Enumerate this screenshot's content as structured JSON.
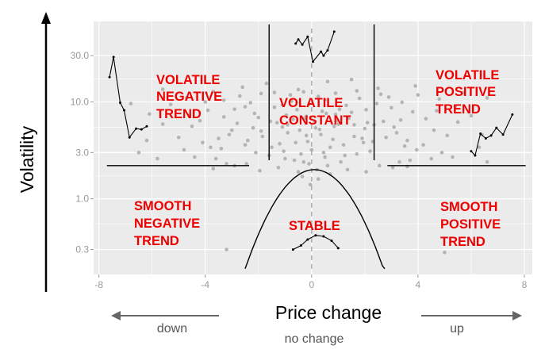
{
  "chart_data": {
    "type": "scatter",
    "title": "",
    "xlabel": "Price change",
    "ylabel": "Volatility",
    "xlim": [
      -8.2,
      8.3
    ],
    "ylim_log10": [
      -0.78,
      1.83
    ],
    "y_scale": "log",
    "grid": true,
    "x_ticks": [
      "-8",
      "-4",
      "0",
      "4",
      "8"
    ],
    "y_ticks": [
      "0.3",
      "1.0",
      "3.0",
      "10.0",
      "30.0"
    ],
    "x_tick_values": [
      -8,
      -4,
      0,
      4,
      8
    ],
    "y_tick_values": [
      0.3,
      1.0,
      3.0,
      10.0,
      30.0
    ],
    "regions": [
      {
        "lines": [
          "VOLATILE",
          "NEGATIVE",
          "TREND"
        ]
      },
      {
        "lines": [
          "VOLATILE",
          "CONSTANT"
        ]
      },
      {
        "lines": [
          "VOLATILE",
          "POSITIVE",
          "TREND"
        ]
      },
      {
        "lines": [
          "SMOOTH",
          "NEGATIVE",
          "TREND"
        ]
      },
      {
        "lines": [
          "STABLE"
        ]
      },
      {
        "lines": [
          "SMOOTH",
          "POSITIVE",
          "TREND"
        ]
      }
    ],
    "direction_labels": {
      "left": "down",
      "center": "no change",
      "right": "up"
    },
    "points": [
      [
        -0.2,
        4.5
      ],
      [
        0.3,
        5.2
      ],
      [
        -0.6,
        3.8
      ],
      [
        0.8,
        4.1
      ],
      [
        -1.1,
        5.5
      ],
      [
        1.2,
        3.6
      ],
      [
        0.1,
        6.2
      ],
      [
        -0.4,
        2.9
      ],
      [
        0.5,
        2.7
      ],
      [
        -0.9,
        4.8
      ],
      [
        1.0,
        5.9
      ],
      [
        -1.5,
        3.4
      ],
      [
        1.6,
        4.4
      ],
      [
        0.0,
        3.2
      ],
      [
        -0.2,
        7.1
      ],
      [
        0.4,
        8.0
      ],
      [
        -0.7,
        6.6
      ],
      [
        0.9,
        7.4
      ],
      [
        -1.3,
        6.1
      ],
      [
        1.4,
        6.8
      ],
      [
        -1.9,
        5.0
      ],
      [
        2.0,
        5.3
      ],
      [
        -2.4,
        4.0
      ],
      [
        2.3,
        3.9
      ],
      [
        -2.8,
        6.0
      ],
      [
        2.7,
        6.3
      ],
      [
        -3.1,
        4.6
      ],
      [
        3.2,
        4.8
      ],
      [
        -3.4,
        3.3
      ],
      [
        3.5,
        3.5
      ],
      [
        -0.3,
        2.4
      ],
      [
        0.6,
        2.2
      ],
      [
        -1.0,
        2.6
      ],
      [
        1.1,
        2.4
      ],
      [
        0.2,
        2.0
      ],
      [
        -0.5,
        1.9
      ],
      [
        -1.6,
        2.8
      ],
      [
        1.7,
        2.9
      ],
      [
        -2.1,
        3.0
      ],
      [
        2.2,
        3.1
      ],
      [
        -0.1,
        9.5
      ],
      [
        0.5,
        10.5
      ],
      [
        -0.8,
        11.8
      ],
      [
        1.3,
        9.2
      ],
      [
        -1.4,
        12.5
      ],
      [
        1.8,
        10.9
      ],
      [
        -2.3,
        9.8
      ],
      [
        2.6,
        12.0
      ],
      [
        -2.9,
        8.4
      ],
      [
        3.0,
        8.7
      ],
      [
        -3.3,
        10.4
      ],
      [
        3.4,
        9.9
      ],
      [
        -3.9,
        8.2
      ],
      [
        3.8,
        7.9
      ],
      [
        -4.2,
        6.4
      ],
      [
        4.3,
        6.7
      ],
      [
        -4.5,
        5.6
      ],
      [
        4.6,
        5.1
      ],
      [
        -5.0,
        4.3
      ],
      [
        5.1,
        4.5
      ],
      [
        -3.6,
        2.6
      ],
      [
        3.7,
        2.5
      ],
      [
        -4.8,
        3.2
      ],
      [
        4.9,
        3.0
      ],
      [
        -5.6,
        5.9
      ],
      [
        5.5,
        6.2
      ],
      [
        -6.1,
        7.5
      ],
      [
        6.0,
        7.2
      ],
      [
        -5.3,
        9.4
      ],
      [
        5.4,
        9.0
      ],
      [
        -1.7,
        15.5
      ],
      [
        1.5,
        17.0
      ],
      [
        -2.6,
        14.2
      ],
      [
        2.5,
        13.8
      ],
      [
        0.6,
        16.2
      ],
      [
        -0.5,
        13.4
      ],
      [
        -3.7,
        12.8
      ],
      [
        3.9,
        14.6
      ],
      [
        -4.7,
        11.0
      ],
      [
        4.8,
        10.7
      ],
      [
        -1.2,
        3.7
      ],
      [
        1.9,
        4.2
      ],
      [
        -2.0,
        6.9
      ],
      [
        0.7,
        3.4
      ],
      [
        -0.9,
        5.8
      ],
      [
        1.5,
        7.8
      ],
      [
        -1.4,
        8.8
      ],
      [
        2.1,
        6.1
      ],
      [
        -2.5,
        3.6
      ],
      [
        2.8,
        4.3
      ],
      [
        -0.15,
        3.9
      ],
      [
        0.35,
        4.6
      ],
      [
        -0.45,
        5.1
      ],
      [
        0.85,
        5.6
      ],
      [
        -1.05,
        3.1
      ],
      [
        1.25,
        2.8
      ],
      [
        -0.65,
        2.5
      ],
      [
        0.45,
        3.0
      ],
      [
        -0.25,
        6.8
      ],
      [
        0.15,
        5.4
      ],
      [
        -1.85,
        4.4
      ],
      [
        1.95,
        3.8
      ],
      [
        -2.2,
        5.4
      ],
      [
        2.35,
        5.8
      ],
      [
        -3.0,
        5.1
      ],
      [
        3.1,
        5.5
      ],
      [
        -3.5,
        4.2
      ],
      [
        3.6,
        4.0
      ],
      [
        -4.1,
        3.8
      ],
      [
        4.2,
        3.6
      ],
      [
        -2.45,
        2.3
      ],
      [
        2.55,
        2.2
      ],
      [
        -3.2,
        2.3
      ],
      [
        3.3,
        2.4
      ],
      [
        -0.35,
        1.7
      ],
      [
        0.25,
        1.6
      ],
      [
        -0.05,
        1.4
      ],
      [
        0.7,
        1.8
      ],
      [
        -1.25,
        2.1
      ],
      [
        1.35,
        2.0
      ],
      [
        -5.8,
        2.6
      ],
      [
        -4.4,
        2.7
      ],
      [
        4.5,
        2.6
      ],
      [
        5.3,
        2.7
      ],
      [
        6.6,
        2.4
      ],
      [
        -0.1,
        2.3
      ],
      [
        -3.8,
        3.4
      ],
      [
        3.95,
        3.2
      ],
      [
        -6.5,
        3.0
      ],
      [
        6.3,
        3.4
      ],
      [
        -2.7,
        11.5
      ],
      [
        2.9,
        11.2
      ],
      [
        -1.9,
        12.2
      ],
      [
        1.7,
        13.0
      ],
      [
        -0.3,
        12.7
      ],
      [
        0.25,
        11.4
      ],
      [
        -1.1,
        9.3
      ],
      [
        1.05,
        8.4
      ],
      [
        -0.75,
        10.2
      ],
      [
        0.9,
        12.3
      ],
      [
        -4.0,
        10.0
      ],
      [
        4.0,
        11.8
      ],
      [
        -5.6,
        13.5
      ],
      [
        5.7,
        12.4
      ],
      [
        -6.8,
        9.6
      ],
      [
        6.6,
        11.0
      ],
      [
        -4.6,
        7.2
      ],
      [
        4.7,
        8.1
      ],
      [
        -3.3,
        7.0
      ],
      [
        3.35,
        6.5
      ],
      [
        -2.15,
        7.6
      ],
      [
        2.05,
        8.3
      ],
      [
        -2.5,
        8.9
      ],
      [
        2.45,
        9.6
      ],
      [
        -1.55,
        6.3
      ],
      [
        1.6,
        5.8
      ],
      [
        -0.95,
        7.3
      ],
      [
        0.95,
        6.4
      ],
      [
        -0.55,
        8.3
      ],
      [
        0.55,
        7.6
      ],
      [
        -3.2,
        0.3
      ],
      [
        5.0,
        0.28
      ],
      [
        -1.95,
        1.95
      ],
      [
        2.05,
        1.9
      ],
      [
        -2.9,
        2.2
      ],
      [
        3.05,
        2.1
      ],
      [
        -3.7,
        2.05
      ],
      [
        3.6,
        2.15
      ],
      [
        -6.2,
        4.0
      ],
      [
        6.4,
        4.6
      ]
    ],
    "curves": {
      "solid": [
        [
          [
            -7.7,
            2.2
          ],
          [
            -2.35,
            2.2
          ]
        ],
        [
          [
            2.85,
            2.2
          ],
          [
            8.05,
            2.2
          ]
        ],
        [
          [
            -1.6,
            2.5
          ],
          [
            -1.6,
            63
          ]
        ],
        [
          [
            2.35,
            2.5
          ],
          [
            2.35,
            63
          ]
        ]
      ],
      "dashed": [
        [
          [
            0,
            0.19
          ],
          [
            0,
            63
          ]
        ]
      ],
      "parabola": {
        "x_from": -2.5,
        "x_to": 2.75,
        "vertex_x": 0.1,
        "vertex_y": 2.0,
        "base_y": 0.19,
        "half_width": 2.6
      },
      "insets": [
        [
          [
            -7.6,
            18
          ],
          [
            -7.45,
            29
          ],
          [
            -7.2,
            9.8
          ],
          [
            -7.05,
            8.2
          ],
          [
            -6.85,
            4.3
          ],
          [
            -6.6,
            5.3
          ],
          [
            -6.4,
            5.2
          ],
          [
            -6.2,
            5.6
          ]
        ],
        [
          [
            -0.6,
            40
          ],
          [
            -0.5,
            44
          ],
          [
            -0.35,
            39
          ],
          [
            -0.15,
            47
          ],
          [
            0.05,
            26
          ],
          [
            0.35,
            33
          ],
          [
            0.45,
            30
          ],
          [
            0.6,
            34
          ],
          [
            0.85,
            53
          ]
        ],
        [
          [
            6.0,
            3.1
          ],
          [
            6.15,
            2.8
          ],
          [
            6.35,
            4.7
          ],
          [
            6.55,
            4.2
          ],
          [
            6.75,
            4.5
          ],
          [
            6.95,
            5.4
          ],
          [
            7.2,
            4.6
          ],
          [
            7.55,
            7.4
          ]
        ],
        [
          [
            -0.7,
            0.3
          ],
          [
            -0.4,
            0.33
          ],
          [
            -0.15,
            0.38
          ],
          [
            0.15,
            0.42
          ],
          [
            0.45,
            0.41
          ],
          [
            0.75,
            0.37
          ],
          [
            1.0,
            0.31
          ]
        ]
      ]
    }
  },
  "colors": {
    "panel_bg": "#ebebeb",
    "grid": "#ffffff",
    "points": "#b4b4b4",
    "labels": "#ee0000",
    "axis_arrow": "#000000",
    "dir_arrow": "#666666"
  }
}
